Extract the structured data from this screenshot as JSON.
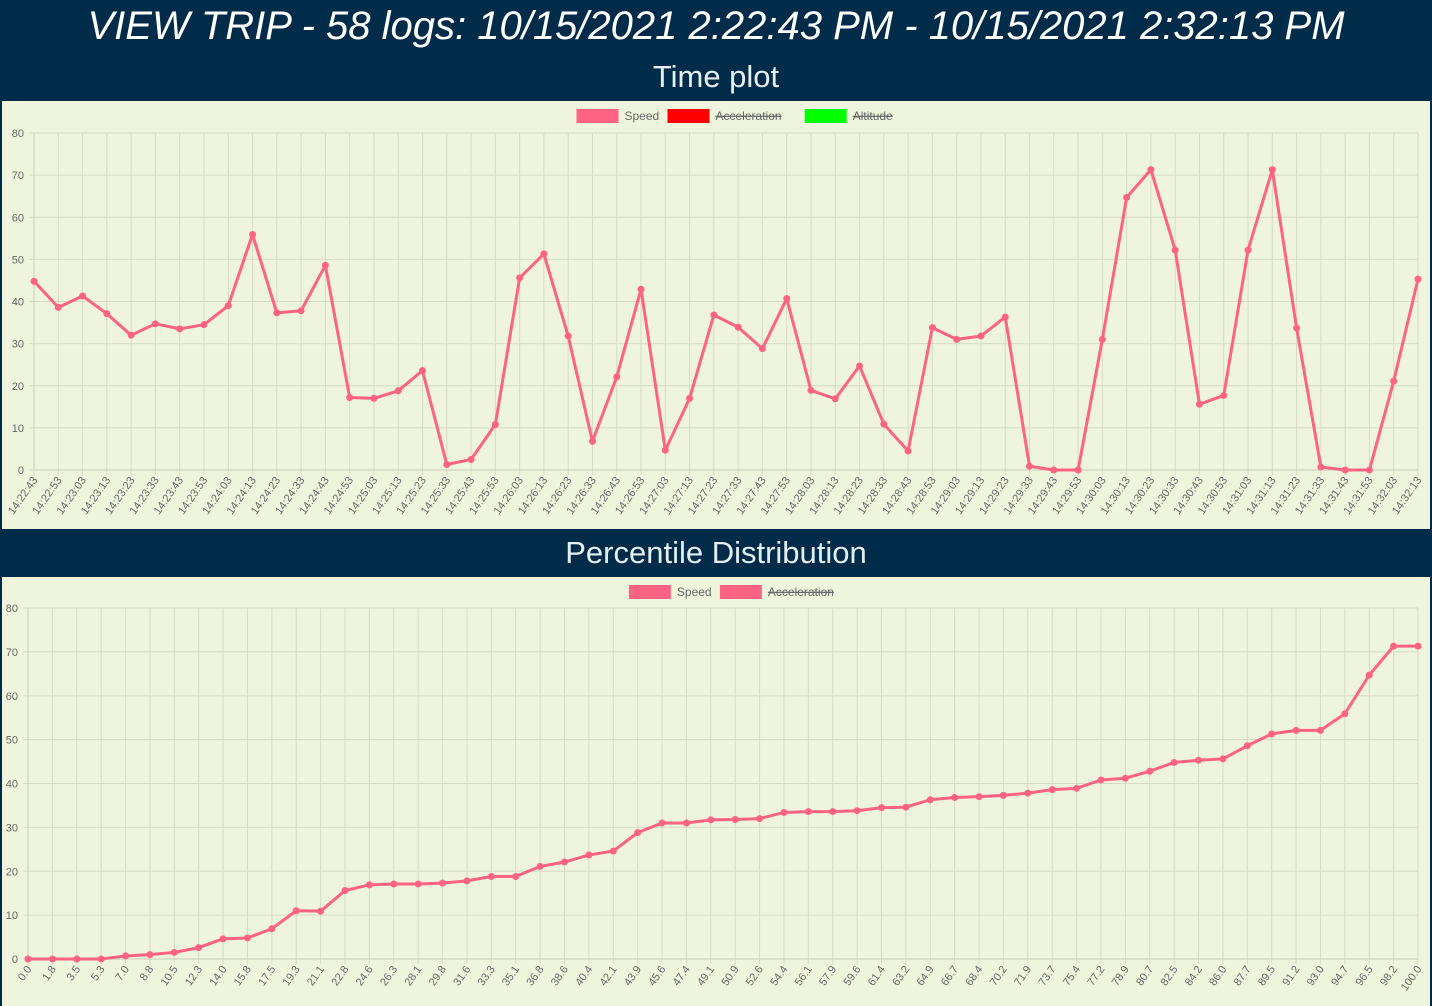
{
  "page": {
    "title": "VIEW TRIP - 58 logs: 10/15/2021 2:22:43 PM - 10/15/2021 2:32:13 PM"
  },
  "colors": {
    "header_bg": "#002b49",
    "panel_bg": "#eff5dd",
    "speed": "#ff6384",
    "acceleration": "#ff0000",
    "altitude": "#00ff00"
  },
  "chart_data": [
    {
      "type": "line",
      "title": "Time plot",
      "legend": [
        {
          "name": "Speed",
          "color": "#ff6384",
          "hidden": false
        },
        {
          "name": "Acceleration",
          "color": "#ff0000",
          "hidden": true
        },
        {
          "name": "Altitude",
          "color": "#00ff00",
          "hidden": true
        }
      ],
      "legend_position": "top",
      "grid": true,
      "ylim": [
        0,
        80
      ],
      "yticks": [
        0,
        10,
        20,
        30,
        40,
        50,
        60,
        70,
        80
      ],
      "categories": [
        "14:22:43",
        "14:22:53",
        "14:23:03",
        "14:23:13",
        "14:23:23",
        "14:23:33",
        "14:23:43",
        "14:23:53",
        "14:24:03",
        "14:24:13",
        "14:24:23",
        "14:24:33",
        "14:24:43",
        "14:24:53",
        "14:25:03",
        "14:25:13",
        "14:25:23",
        "14:25:33",
        "14:25:43",
        "14:25:53",
        "14:26:03",
        "14:26:13",
        "14:26:23",
        "14:26:33",
        "14:26:43",
        "14:26:53",
        "14:27:03",
        "14:27:13",
        "14:27:23",
        "14:27:33",
        "14:27:43",
        "14:27:53",
        "14:28:03",
        "14:28:13",
        "14:28:23",
        "14:28:33",
        "14:28:43",
        "14:28:53",
        "14:29:03",
        "14:29:13",
        "14:29:23",
        "14:29:33",
        "14:29:43",
        "14:29:53",
        "14:30:03",
        "14:30:13",
        "14:30:23",
        "14:30:33",
        "14:30:43",
        "14:30:53",
        "14:31:03",
        "14:31:13",
        "14:31:23",
        "14:31:33",
        "14:31:43",
        "14:31:53",
        "14:32:03",
        "14:32:13"
      ],
      "series": [
        {
          "name": "Speed",
          "values": [
            44.8,
            38.6,
            41.3,
            37.1,
            32.0,
            34.7,
            33.5,
            34.5,
            39.0,
            55.9,
            37.3,
            37.8,
            48.6,
            17.2,
            17.0,
            18.8,
            23.6,
            1.3,
            2.5,
            10.8,
            45.6,
            51.3,
            31.8,
            6.8,
            22.1,
            42.9,
            4.7,
            17.0,
            36.8,
            33.9,
            28.8,
            40.7,
            18.9,
            16.9,
            24.7,
            10.9,
            4.5,
            33.8,
            31.0,
            31.8,
            36.3,
            0.9,
            0.0,
            0.0,
            31.0,
            64.7,
            71.3,
            52.2,
            15.6,
            17.7,
            52.2,
            71.3,
            33.7,
            0.7,
            0.0,
            0.0,
            21.1,
            45.3
          ]
        }
      ]
    },
    {
      "type": "line",
      "title": "Percentile Distribution",
      "legend": [
        {
          "name": "Speed",
          "color": "#ff6384",
          "hidden": false
        },
        {
          "name": "Acceleration",
          "color": "#ff6384",
          "hidden": true
        }
      ],
      "legend_position": "top",
      "grid": true,
      "ylim": [
        0,
        80
      ],
      "yticks": [
        0,
        10,
        20,
        30,
        40,
        50,
        60,
        70,
        80
      ],
      "categories": [
        "0.0",
        "1.8",
        "3.5",
        "5.3",
        "7.0",
        "8.8",
        "10.5",
        "12.3",
        "14.0",
        "15.8",
        "17.5",
        "19.3",
        "21.1",
        "22.8",
        "24.6",
        "26.3",
        "28.1",
        "29.8",
        "31.6",
        "33.3",
        "35.1",
        "36.8",
        "38.6",
        "40.4",
        "42.1",
        "43.9",
        "45.6",
        "47.4",
        "49.1",
        "50.9",
        "52.6",
        "54.4",
        "56.1",
        "57.9",
        "59.6",
        "61.4",
        "63.2",
        "64.9",
        "66.7",
        "68.4",
        "70.2",
        "71.9",
        "73.7",
        "75.4",
        "77.2",
        "78.9",
        "80.7",
        "82.5",
        "84.2",
        "86.0",
        "87.7",
        "89.5",
        "91.2",
        "93.0",
        "94.7",
        "96.5",
        "98.2",
        "100.0"
      ],
      "series": [
        {
          "name": "Speed",
          "values": [
            0.0,
            0.0,
            0.0,
            0.0,
            0.7,
            1.0,
            1.5,
            2.6,
            4.6,
            4.8,
            6.9,
            11.0,
            10.9,
            15.6,
            16.9,
            17.1,
            17.1,
            17.3,
            17.8,
            18.8,
            18.8,
            21.1,
            22.1,
            23.7,
            24.6,
            28.8,
            31.0,
            31.0,
            31.7,
            31.8,
            32.0,
            33.4,
            33.6,
            33.6,
            33.8,
            34.5,
            34.6,
            36.3,
            36.8,
            37.0,
            37.3,
            37.8,
            38.6,
            38.9,
            40.8,
            41.2,
            42.8,
            44.8,
            45.3,
            45.6,
            48.6,
            51.3,
            52.1,
            52.1,
            55.9,
            64.7,
            71.3,
            71.3
          ]
        }
      ]
    }
  ]
}
